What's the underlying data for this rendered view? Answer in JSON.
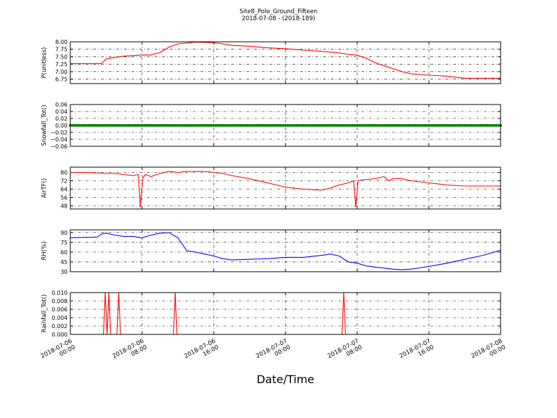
{
  "figure": {
    "title_line1": "Site8_Polo_Ground_Fifteen",
    "title_line2": "2018-07-08 - (2018-189)",
    "xlabel": "Date/Time",
    "x_tick_labels": [
      [
        "2018-07-06",
        "00:00"
      ],
      [
        "2018-07-06",
        "08:00"
      ],
      [
        "2018-07-06",
        "16:00"
      ],
      [
        "2018-07-07",
        "00:00"
      ],
      [
        "2018-07-07",
        "08:00"
      ],
      [
        "2018-07-07",
        "16:00"
      ],
      [
        "2018-07-08",
        "00:00"
      ]
    ]
  },
  "chart_data": [
    {
      "type": "line",
      "ylabel": "P(unitless)",
      "color": "#ff0000",
      "ylim": [
        6.6,
        8.0
      ],
      "yticks": [
        6.75,
        7.0,
        7.25,
        7.5,
        7.75,
        8.0
      ],
      "ytick_labels": [
        "6.75",
        "7.00",
        "7.25",
        "7.50",
        "7.75",
        "8.00"
      ],
      "x_hours": [
        0,
        3,
        3.5,
        4,
        5,
        6,
        8,
        9,
        10,
        11,
        12,
        14,
        16,
        17,
        18,
        20,
        22,
        24,
        26,
        28,
        30,
        31,
        32,
        33,
        34,
        35,
        36,
        37,
        38,
        40,
        42,
        44,
        48
      ],
      "values": [
        7.27,
        7.27,
        7.27,
        7.43,
        7.48,
        7.52,
        7.56,
        7.56,
        7.64,
        7.82,
        7.93,
        7.99,
        7.97,
        7.93,
        7.88,
        7.85,
        7.8,
        7.77,
        7.72,
        7.68,
        7.63,
        7.58,
        7.55,
        7.45,
        7.3,
        7.2,
        7.1,
        7.0,
        6.93,
        6.88,
        6.85,
        6.78,
        6.78
      ]
    },
    {
      "type": "scatter",
      "ylabel": "Snowfall_Tot()",
      "color": "#008000",
      "ylim": [
        -0.06,
        0.06
      ],
      "yticks": [
        -0.06,
        -0.04,
        -0.02,
        0.0,
        0.02,
        0.04,
        0.06
      ],
      "ytick_labels": [
        "−0.06",
        "−0.04",
        "−0.02",
        "0.00",
        "0.02",
        "0.04",
        "0.06"
      ],
      "x_hours": [
        0,
        48
      ],
      "values": [
        0.0,
        0.0
      ]
    },
    {
      "type": "line",
      "ylabel": "AirTF()",
      "color": "#ff0000",
      "ylim": [
        45,
        85
      ],
      "yticks": [
        48,
        56,
        64,
        72,
        80
      ],
      "ytick_labels": [
        "48",
        "56",
        "64",
        "72",
        "80"
      ],
      "x_hours": [
        0,
        2,
        4,
        5,
        6,
        7,
        7.6,
        7.8,
        8.1,
        8.4,
        9,
        10,
        11,
        12,
        13,
        14,
        15,
        16,
        17,
        18,
        20,
        22,
        24,
        26,
        28,
        29,
        30,
        31,
        31.6,
        31.85,
        32.1,
        32.6,
        34,
        35,
        35.5,
        36,
        37,
        38,
        40,
        42,
        44,
        48
      ],
      "values": [
        80,
        80,
        79,
        79,
        78,
        77,
        78,
        47,
        75,
        78,
        76,
        79,
        81,
        80,
        81,
        81,
        81,
        80,
        79,
        77,
        74,
        70,
        66,
        64,
        63,
        65,
        68,
        70,
        72,
        47,
        72,
        73,
        74,
        76,
        72,
        74,
        74,
        72,
        70,
        68,
        67,
        67
      ]
    },
    {
      "type": "line",
      "ylabel": "RH(%)",
      "color": "#0000ff",
      "ylim": [
        30,
        94
      ],
      "yticks": [
        30,
        45,
        60,
        75,
        90
      ],
      "ytick_labels": [
        "30",
        "45",
        "60",
        "75",
        "90"
      ],
      "x_hours": [
        0,
        3,
        3.5,
        4,
        5,
        6,
        7,
        8,
        9,
        10,
        11,
        12,
        13,
        14,
        15,
        16,
        17,
        18,
        20,
        22,
        24,
        26,
        28,
        29,
        30,
        31,
        32,
        33,
        34,
        36,
        37,
        38,
        40,
        42,
        44,
        46,
        48
      ],
      "values": [
        82,
        83,
        88,
        89,
        86,
        84,
        84,
        82,
        86,
        89,
        90,
        82,
        62,
        60,
        57,
        54,
        50,
        48,
        49,
        50,
        52,
        52,
        55,
        57,
        54,
        45,
        43,
        39,
        37,
        34,
        33,
        34,
        38,
        43,
        49,
        55,
        63
      ]
    },
    {
      "type": "line",
      "ylabel": "Rainfall_Tot()",
      "color": "#ff0000",
      "ylim": [
        0.0,
        0.01
      ],
      "yticks": [
        0.0,
        0.002,
        0.004,
        0.006,
        0.008,
        0.01
      ],
      "ytick_labels": [
        "0.000",
        "0.002",
        "0.004",
        "0.006",
        "0.008",
        "0.010"
      ],
      "x_hours": [
        0,
        3.7,
        3.9,
        4.1,
        4.3,
        4.5,
        5.2,
        5.4,
        5.6,
        11.5,
        11.7,
        11.9,
        30.3,
        30.5,
        30.7,
        48
      ],
      "values": [
        0,
        0,
        0.01,
        0,
        0.01,
        0,
        0,
        0.01,
        0,
        0,
        0.01,
        0,
        0,
        0.01,
        0,
        0
      ]
    }
  ]
}
